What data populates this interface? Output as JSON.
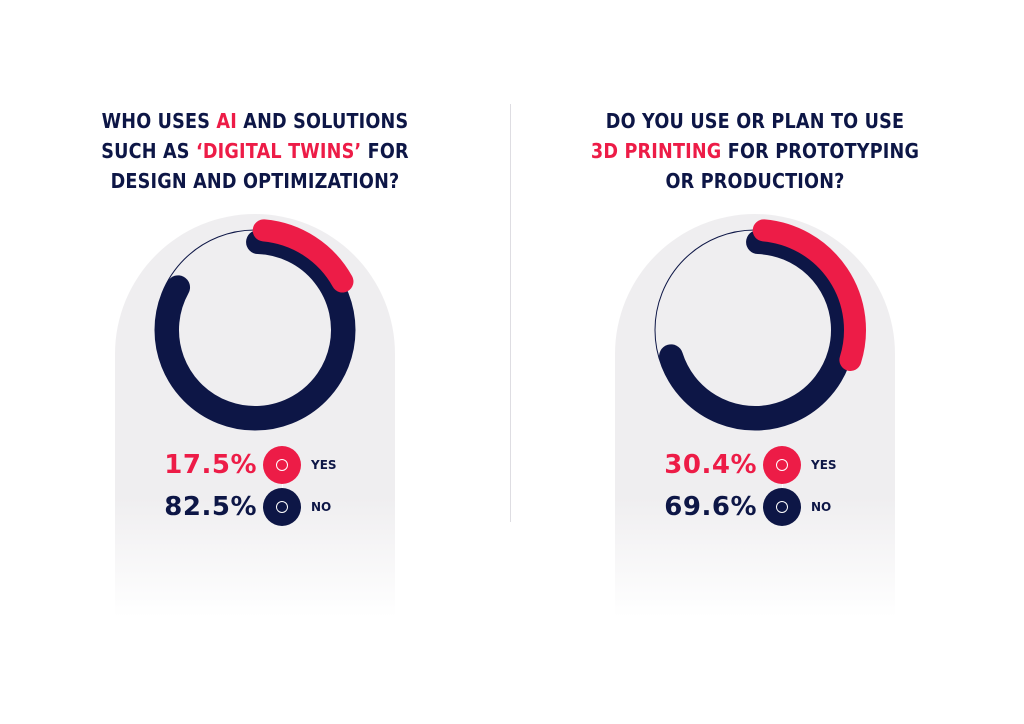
{
  "colors": {
    "accent": "#ed1c47",
    "navy": "#0d1646",
    "arch": "#efeef0"
  },
  "charts": [
    {
      "title_parts": [
        {
          "text": "WHO USES ",
          "hl": false
        },
        {
          "text": "AI",
          "hl": true
        },
        {
          "text": " AND SOLUTIONS",
          "hl": false
        },
        {
          "br": true
        },
        {
          "text": "SUCH AS ",
          "hl": false
        },
        {
          "text": "‘DIGITAL TWINS’",
          "hl": true
        },
        {
          "text": " FOR",
          "hl": false
        },
        {
          "br": true
        },
        {
          "text": "DESIGN AND OPTIMIZATION?",
          "hl": false
        }
      ],
      "yes": {
        "value_label": "17.5%",
        "label": "YES"
      },
      "no": {
        "value_label": "82.5%",
        "label": "NO"
      }
    },
    {
      "title_parts": [
        {
          "text": "DO YOU USE OR PLAN TO USE",
          "hl": false
        },
        {
          "br": true
        },
        {
          "text": "3D PRINTING",
          "hl": true
        },
        {
          "text": " FOR PROTOTYPING",
          "hl": false
        },
        {
          "br": true
        },
        {
          "text": "OR PRODUCTION?",
          "hl": false
        }
      ],
      "yes": {
        "value_label": "30.4%",
        "label": "YES"
      },
      "no": {
        "value_label": "69.6%",
        "label": "NO"
      }
    }
  ],
  "chart_data": [
    {
      "type": "pie",
      "title": "WHO USES AI AND SOLUTIONS SUCH AS ‘DIGITAL TWINS’ FOR DESIGN AND OPTIMIZATION?",
      "categories": [
        "YES",
        "NO"
      ],
      "values": [
        17.5,
        82.5
      ],
      "colors": [
        "#ed1c47",
        "#0d1646"
      ]
    },
    {
      "type": "pie",
      "title": "DO YOU USE OR PLAN TO USE 3D PRINTING FOR PROTOTYPING OR PRODUCTION?",
      "categories": [
        "YES",
        "NO"
      ],
      "values": [
        30.4,
        69.6
      ],
      "colors": [
        "#ed1c47",
        "#0d1646"
      ]
    }
  ]
}
